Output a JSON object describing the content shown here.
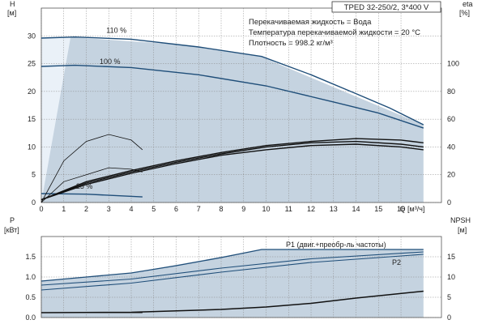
{
  "chart_data": [
    {
      "type": "line",
      "title": "TPED 32-250/2, 3*400 V",
      "info_lines": [
        "Перекачиваемая жидкость = Вода",
        "Температура перекачиваемой жидкости = 20 °C",
        "Плотность = 998.2 кг/м³"
      ],
      "ylabel_left": [
        "H",
        "[м]"
      ],
      "ylabel_right": [
        "eta",
        "[%]"
      ],
      "xlabel": "Q [м³/ч]",
      "xlim": [
        0,
        17.8
      ],
      "ylim_left": [
        0,
        35
      ],
      "ylim_right": [
        0,
        140
      ],
      "x_ticks": [
        0,
        1,
        2,
        3,
        4,
        5,
        6,
        7,
        8,
        9,
        10,
        11,
        12,
        13,
        14,
        15,
        16
      ],
      "y_ticks_left": [
        0,
        5,
        10,
        15,
        20,
        25,
        30
      ],
      "y_ticks_right": [
        0,
        20,
        40,
        60,
        80,
        100
      ],
      "grid": true,
      "operating_region": [
        [
          0,
          29.5
        ],
        [
          1.5,
          29.7
        ],
        [
          6,
          28.5
        ],
        [
          9.8,
          26.2
        ],
        [
          17,
          14
        ],
        [
          17,
          0
        ],
        [
          4.5,
          0
        ],
        [
          0,
          0
        ]
      ],
      "operating_region_light": [
        [
          0,
          29.5
        ],
        [
          1.3,
          29.7
        ],
        [
          0,
          0
        ]
      ],
      "series": [
        {
          "name": "110 %",
          "x": [
            0,
            1.5,
            4,
            7,
            9.8,
            12,
            14,
            15.5,
            17
          ],
          "y": [
            29.6,
            29.8,
            29.4,
            28.0,
            26.3,
            23.0,
            19.6,
            17.0,
            14.0
          ]
        },
        {
          "name": "100 %",
          "x": [
            0,
            1.5,
            4,
            7,
            10,
            13,
            15,
            17
          ],
          "y": [
            24.5,
            24.7,
            24.3,
            23.0,
            21.0,
            18.1,
            16.1,
            13.4
          ]
        },
        {
          "name": "25 %",
          "x": [
            0,
            2,
            4.5
          ],
          "y": [
            1.6,
            1.5,
            1.0
          ]
        }
      ],
      "eta_curves": [
        {
          "x": [
            0,
            2,
            4,
            6,
            8,
            10,
            12,
            14,
            16,
            17
          ],
          "y": [
            2,
            15,
            23,
            30,
            36,
            41,
            44,
            46,
            45,
            43
          ]
        },
        {
          "x": [
            0,
            2,
            4,
            6,
            8,
            10,
            12,
            14,
            16,
            17
          ],
          "y": [
            2,
            14,
            22,
            29,
            35,
            40,
            43,
            44,
            42,
            40
          ]
        },
        {
          "x": [
            0,
            2,
            4,
            6,
            8,
            10,
            12,
            14,
            16,
            17
          ],
          "y": [
            2,
            13,
            21,
            28,
            34,
            38,
            41,
            42,
            40,
            38
          ]
        },
        {
          "x": [
            0,
            1,
            2,
            3,
            4,
            4.5
          ],
          "y": [
            0,
            30,
            44,
            49,
            45,
            38
          ]
        },
        {
          "x": [
            0,
            1,
            2,
            3,
            4,
            4.5
          ],
          "y": [
            0,
            15,
            20,
            25,
            24,
            22
          ]
        }
      ]
    },
    {
      "type": "line",
      "ylabel_left": [
        "P",
        "[кВт]"
      ],
      "ylabel_right": [
        "NPSH",
        "[м]"
      ],
      "xlim": [
        0,
        17.8
      ],
      "ylim_left": [
        0,
        2.0
      ],
      "ylim_right": [
        0,
        20
      ],
      "y_ticks_left": [
        0.0,
        0.5,
        1.0,
        1.5
      ],
      "y_ticks_left_labels": [
        "0.0",
        "0.5",
        "1.0",
        "1.5"
      ],
      "y_ticks_right": [
        0,
        5,
        10,
        15
      ],
      "grid": true,
      "operating_region": [
        [
          0,
          0.9
        ],
        [
          4,
          1.1
        ],
        [
          9.8,
          1.68
        ],
        [
          17,
          1.68
        ],
        [
          17,
          0
        ],
        [
          0,
          0
        ]
      ],
      "series": [
        {
          "name": "P1 (двиг.+преобр-ль частоты)",
          "x": [
            0,
            2,
            4,
            6,
            8,
            9.8,
            17
          ],
          "y": [
            0.9,
            1.0,
            1.1,
            1.28,
            1.48,
            1.68,
            1.68
          ]
        },
        {
          "name": "",
          "x": [
            0,
            4,
            8,
            12,
            17
          ],
          "y": [
            0.8,
            0.95,
            1.22,
            1.45,
            1.62
          ]
        },
        {
          "name": "P2",
          "x": [
            0,
            4,
            8,
            12,
            17
          ],
          "y": [
            0.68,
            0.85,
            1.12,
            1.36,
            1.56
          ]
        },
        {
          "name": "",
          "x": [
            0,
            4.5
          ],
          "y": [
            0.12,
            0.12
          ]
        }
      ],
      "npsh": {
        "x": [
          0,
          4,
          8,
          10,
          12,
          14,
          17
        ],
        "y": [
          1.2,
          1.3,
          2.0,
          2.6,
          3.5,
          4.8,
          6.5
        ]
      }
    }
  ]
}
